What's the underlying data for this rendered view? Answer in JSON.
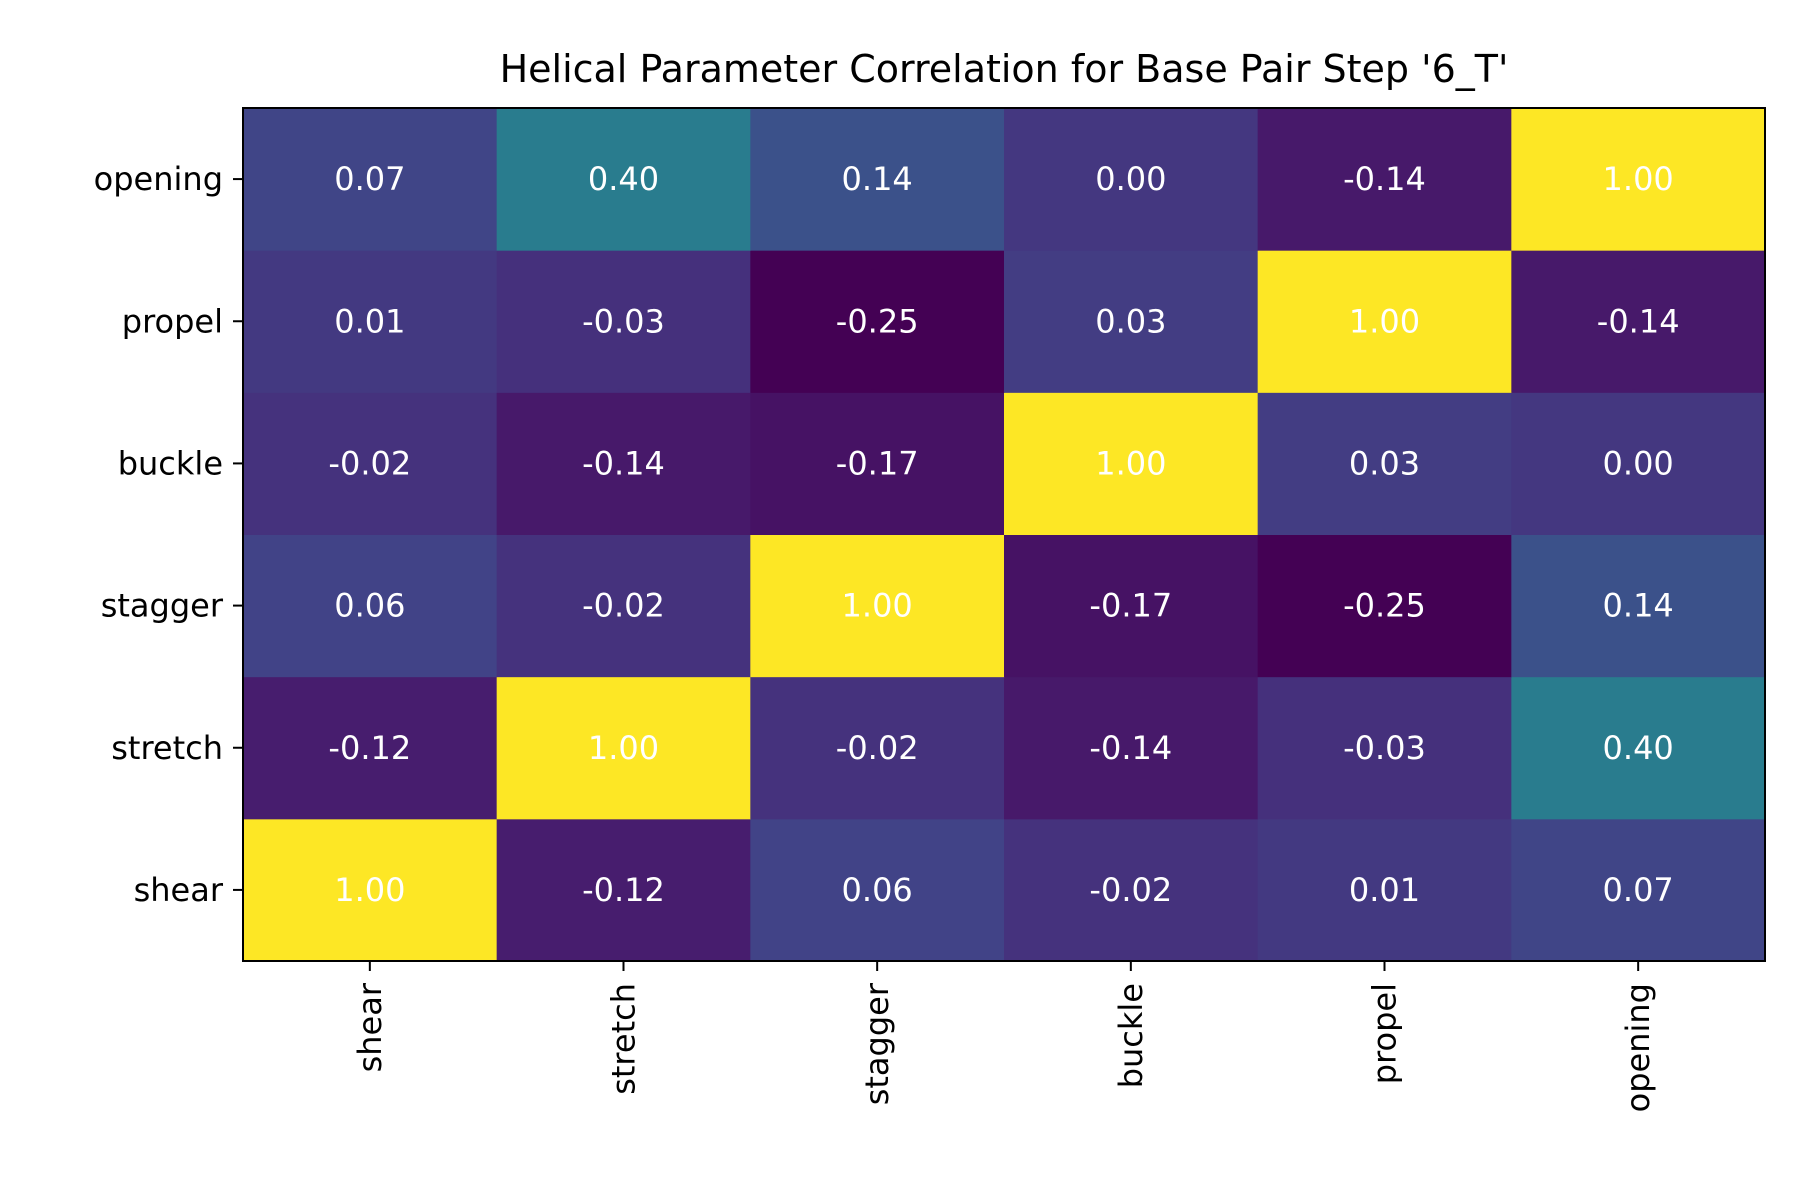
{
  "chart_data": {
    "type": "heatmap",
    "title": "Helical Parameter Correlation for Base Pair Step '6_T'",
    "xlabel": "",
    "ylabel": "",
    "x_categories": [
      "shear",
      "stretch",
      "stagger",
      "buckle",
      "propel",
      "opening"
    ],
    "y_categories": [
      "shear",
      "stretch",
      "stagger",
      "buckle",
      "propel",
      "opening"
    ],
    "y_order": "bottom-to-top",
    "matrix": [
      [
        1.0,
        -0.12,
        0.06,
        -0.02,
        0.01,
        0.07
      ],
      [
        -0.12,
        1.0,
        -0.02,
        -0.14,
        -0.03,
        0.4
      ],
      [
        0.06,
        -0.02,
        1.0,
        -0.17,
        -0.25,
        0.14
      ],
      [
        -0.02,
        -0.14,
        -0.17,
        1.0,
        0.03,
        0.0
      ],
      [
        0.01,
        -0.03,
        -0.25,
        0.03,
        1.0,
        -0.14
      ],
      [
        0.07,
        0.4,
        0.14,
        0.0,
        -0.14,
        1.0
      ]
    ],
    "value_format": "2 decimals",
    "colormap": "viridis",
    "color_range": [
      -0.25,
      1.0
    ],
    "annotation_color": "#ffffff",
    "grid": false
  }
}
